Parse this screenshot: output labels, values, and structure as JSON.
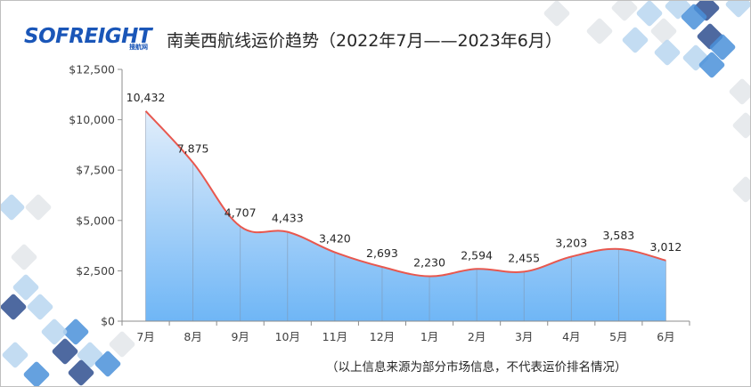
{
  "logo": {
    "main": "SOFREIGHT",
    "sub": "搜航网"
  },
  "chart_data": {
    "type": "area",
    "title": "南美西航线运价趋势（2022年7月——2023年6月）",
    "categories": [
      "7月",
      "8月",
      "9月",
      "10月",
      "11月",
      "12月",
      "1月",
      "2月",
      "3月",
      "4月",
      "5月",
      "6月"
    ],
    "series": [
      {
        "values": [
          10432,
          7875,
          4707,
          4433,
          3420,
          2693,
          2230,
          2594,
          2455,
          3203,
          3583,
          3012
        ]
      }
    ],
    "data_labels": [
      "10,432",
      "7,875",
      "4,707",
      "4,433",
      "3,420",
      "2,693",
      "2,230",
      "2,594",
      "2,455",
      "3,203",
      "3,583",
      "3,012"
    ],
    "ylim": [
      0,
      12500
    ],
    "yticks": [
      0,
      2500,
      5000,
      7500,
      10000,
      12500
    ],
    "ytick_labels": [
      "$0",
      "$2,500",
      "$5,000",
      "$7,500",
      "$10,000",
      "$12,500"
    ],
    "xlabel": "",
    "ylabel": "",
    "grid": false,
    "line_color": "#e8584f",
    "fill_top_color": "#e2eefb",
    "fill_bottom_color": "#6fb6f6"
  },
  "footnote": "（以上信息来源为部分市场信息，不代表运价排名情况）",
  "colors": {
    "deco_dark": "#2f4f8f",
    "deco_mid": "#4a90d9",
    "deco_light": "#b9d6f0",
    "deco_grey": "#e3e6ea"
  }
}
